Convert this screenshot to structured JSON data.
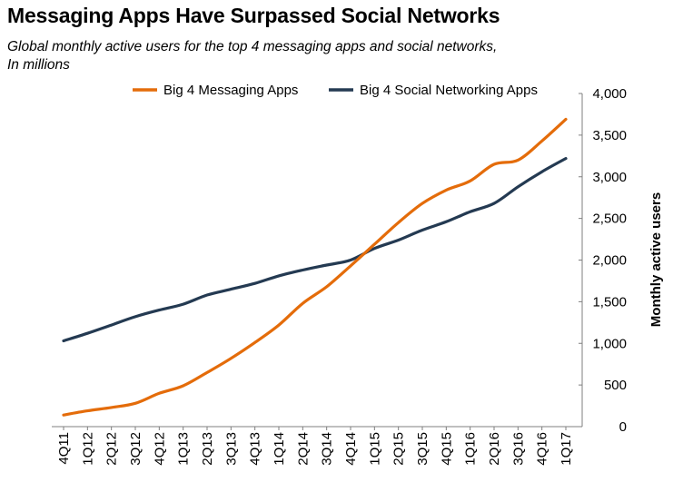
{
  "title": "Messaging Apps Have Surpassed Social Networks",
  "subtitle_lines": [
    "Global monthly active users for the top 4 messaging apps and social networks,",
    "In millions"
  ],
  "chart_data": {
    "type": "line",
    "title": "Messaging Apps Have Surpassed Social Networks",
    "subtitle": "Global monthly active users for the top 4 messaging apps and social networks, In millions",
    "xlabel": "",
    "ylabel": "Monthly active users",
    "ylim": [
      0,
      4000
    ],
    "yticks": [
      0,
      500,
      1000,
      1500,
      2000,
      2500,
      3000,
      3500,
      4000
    ],
    "ytick_labels": [
      "0",
      "500",
      "1,000",
      "1,500",
      "2,000",
      "2,500",
      "3,000",
      "3,500",
      "4,000"
    ],
    "y_axis_side": "right",
    "grid": false,
    "legend_position": "top",
    "x": [
      "4Q11",
      "1Q12",
      "2Q12",
      "3Q12",
      "4Q12",
      "1Q13",
      "2Q13",
      "3Q13",
      "4Q13",
      "1Q14",
      "2Q14",
      "3Q14",
      "4Q14",
      "1Q15",
      "2Q15",
      "3Q15",
      "4Q15",
      "1Q16",
      "2Q16",
      "3Q16",
      "4Q16",
      "1Q17"
    ],
    "series": [
      {
        "name": "Big 4 Messaging Apps",
        "color": "#E46C0A",
        "values": [
          140,
          190,
          230,
          280,
          400,
          490,
          650,
          820,
          1010,
          1220,
          1480,
          1680,
          1930,
          2190,
          2450,
          2680,
          2840,
          2950,
          3150,
          3200,
          3430,
          3690
        ]
      },
      {
        "name": "Big 4 Social Networking Apps",
        "color": "#243A52",
        "values": [
          1030,
          1120,
          1220,
          1320,
          1400,
          1470,
          1580,
          1650,
          1720,
          1810,
          1880,
          1940,
          2000,
          2140,
          2240,
          2360,
          2460,
          2580,
          2680,
          2880,
          3060,
          3220
        ]
      }
    ]
  }
}
